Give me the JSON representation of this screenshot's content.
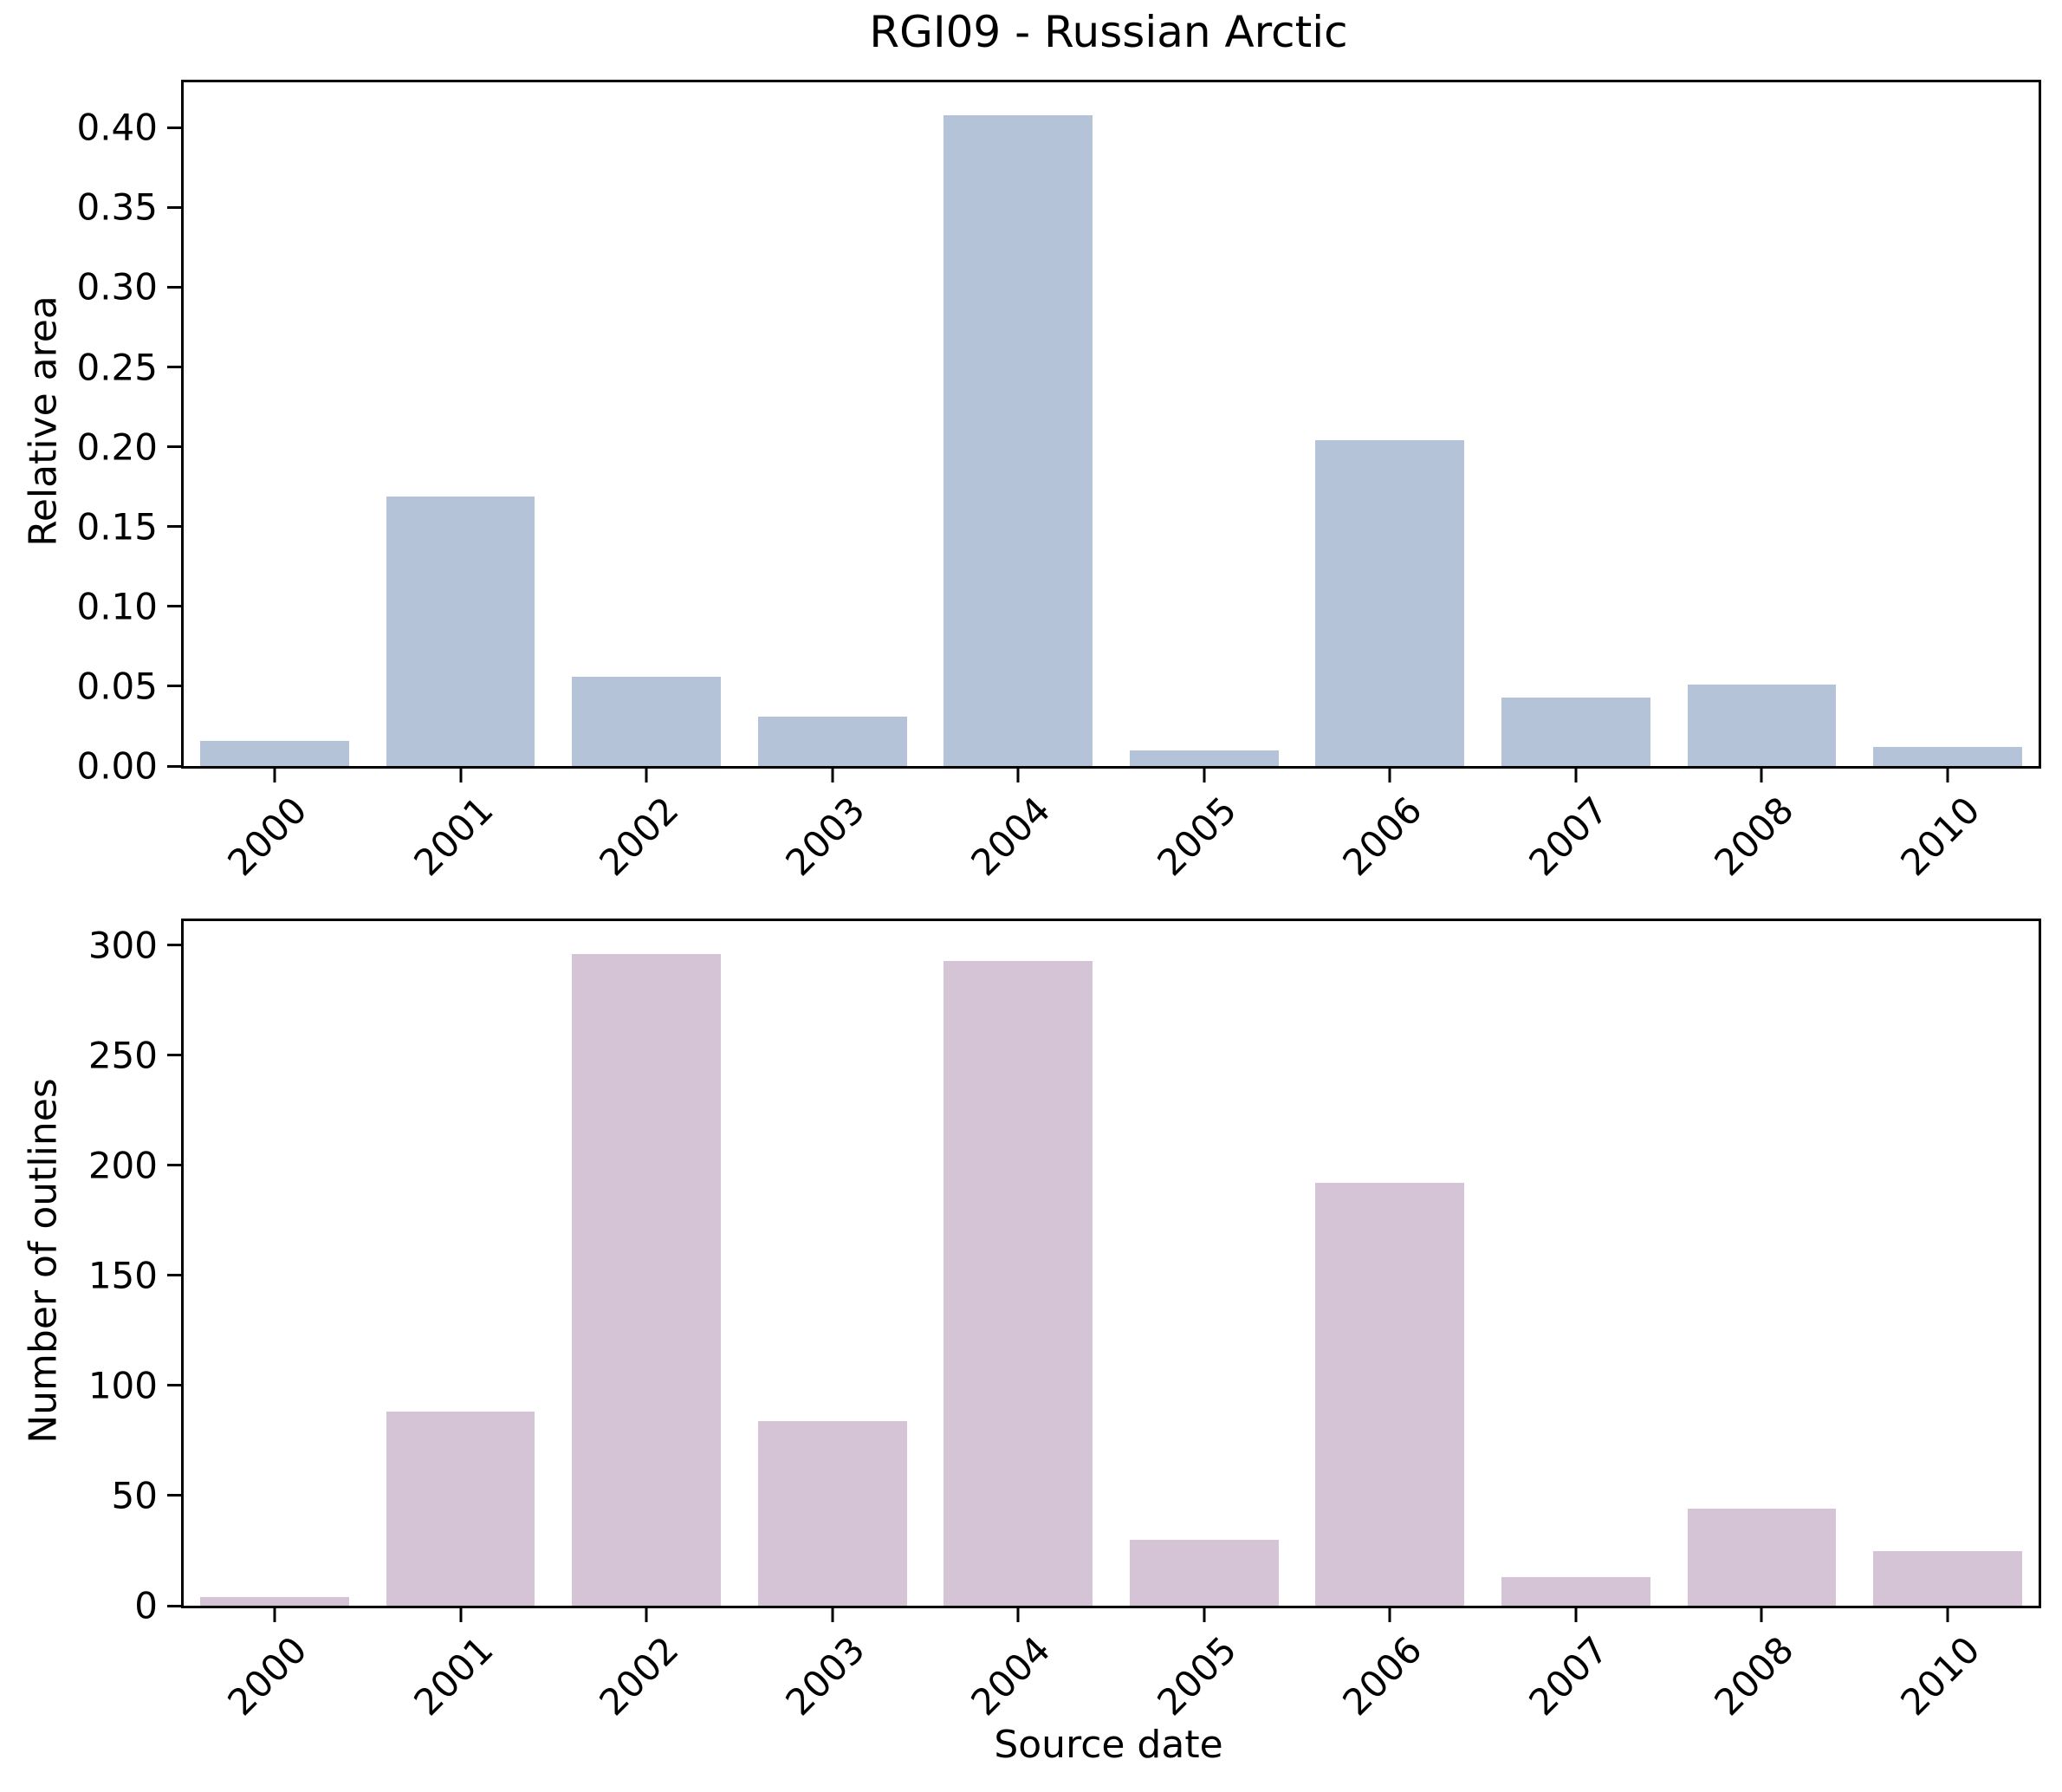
{
  "title": "RGI09 - Russian Arctic",
  "colors": {
    "background": "#ffffff",
    "axis": "#000000",
    "top_bar": "#b4c3d7",
    "bottom_bar": "#d4c4d6"
  },
  "chart_data": [
    {
      "type": "bar",
      "panel": "top",
      "title": "RGI09 - Russian Arctic",
      "categories": [
        "2000",
        "2001",
        "2002",
        "2003",
        "2004",
        "2005",
        "2006",
        "2007",
        "2008",
        "2010"
      ],
      "values": [
        0.016,
        0.169,
        0.056,
        0.031,
        0.408,
        0.01,
        0.204,
        0.043,
        0.051,
        0.012
      ],
      "xlabel": "",
      "ylabel": "Relative area",
      "ylim": [
        0,
        0.4284
      ],
      "yticks": [
        0.0,
        0.05,
        0.1,
        0.15,
        0.2,
        0.25,
        0.3,
        0.35,
        0.4
      ],
      "ytick_labels": [
        "0.00",
        "0.05",
        "0.10",
        "0.15",
        "0.20",
        "0.25",
        "0.30",
        "0.35",
        "0.40"
      ],
      "bar_color": "#b4c3d7",
      "grid": false,
      "xtick_rotation": 45,
      "legend": "none"
    },
    {
      "type": "bar",
      "panel": "bottom",
      "title": "",
      "categories": [
        "2000",
        "2001",
        "2002",
        "2003",
        "2004",
        "2005",
        "2006",
        "2007",
        "2008",
        "2010"
      ],
      "values": [
        4,
        88,
        296,
        84,
        293,
        30,
        192,
        13,
        44,
        25
      ],
      "xlabel": "Source date",
      "ylabel": "Number of outlines",
      "ylim": [
        0,
        311
      ],
      "yticks": [
        0,
        50,
        100,
        150,
        200,
        250,
        300
      ],
      "ytick_labels": [
        "0",
        "50",
        "100",
        "150",
        "200",
        "250",
        "300"
      ],
      "bar_color": "#d4c4d6",
      "grid": false,
      "xtick_rotation": 45,
      "legend": "none"
    }
  ]
}
